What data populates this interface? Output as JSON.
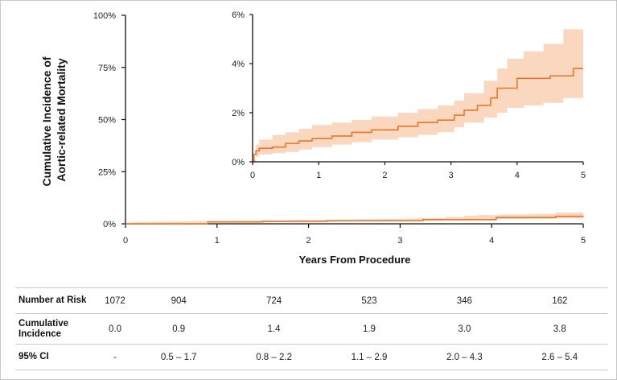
{
  "colors": {
    "line": "#e8762b",
    "band": "#fad7bf",
    "axis": "#111111",
    "grid": "#c9c9c9"
  },
  "chart_data": [
    {
      "id": "main",
      "type": "line",
      "title": "",
      "xlabel": "Years From Procedure",
      "ylabel": [
        "Cumulative Incidence of",
        "Aortic-related Mortality"
      ],
      "xlim": [
        0,
        5
      ],
      "ylim": [
        0,
        100
      ],
      "xticks": [
        0,
        1,
        2,
        3,
        4,
        5
      ],
      "yticks": [
        0,
        25,
        50,
        75,
        100
      ],
      "ytick_labels": [
        "0%",
        "25%",
        "50%",
        "75%",
        "100%"
      ],
      "grid": false,
      "series": [
        {
          "name": "Cumulative incidence",
          "x": [
            0,
            0.9,
            1.5,
            2.2,
            3.25,
            4.05,
            4.7,
            5
          ],
          "y": [
            0,
            0.9,
            1.2,
            1.5,
            2.0,
            3.0,
            3.6,
            3.8
          ]
        }
      ]
    },
    {
      "id": "inset",
      "type": "area",
      "xlim": [
        0,
        5
      ],
      "ylim": [
        0,
        6
      ],
      "xticks": [
        0,
        1,
        2,
        3,
        4,
        5
      ],
      "yticks": [
        0,
        2,
        4,
        6
      ],
      "ytick_labels": [
        "0%",
        "2%",
        "4%",
        "6%"
      ],
      "grid": false,
      "series": [
        {
          "name": "Cumulative incidence",
          "x": [
            0,
            0.02,
            0.05,
            0.1,
            0.3,
            0.5,
            0.7,
            0.9,
            1.2,
            1.5,
            1.8,
            2.2,
            2.5,
            2.8,
            3.05,
            3.2,
            3.4,
            3.6,
            3.7,
            4.0,
            4.5,
            4.85,
            5.0
          ],
          "y": [
            0,
            0.3,
            0.45,
            0.55,
            0.6,
            0.75,
            0.85,
            0.95,
            1.05,
            1.2,
            1.3,
            1.45,
            1.6,
            1.7,
            1.9,
            2.1,
            2.3,
            2.6,
            3.0,
            3.4,
            3.5,
            3.8,
            3.8
          ]
        }
      ],
      "band": {
        "name": "95% CI",
        "x": [
          0,
          0.05,
          0.1,
          0.3,
          0.5,
          0.7,
          0.9,
          1.2,
          1.5,
          1.8,
          2.2,
          2.5,
          2.8,
          3.05,
          3.2,
          3.5,
          3.7,
          3.85,
          4.1,
          4.4,
          4.7,
          5.0
        ],
        "lower": [
          0,
          0.1,
          0.2,
          0.3,
          0.35,
          0.4,
          0.5,
          0.6,
          0.7,
          0.8,
          0.9,
          1.0,
          1.1,
          1.2,
          1.4,
          1.6,
          1.8,
          2.0,
          2.2,
          2.3,
          2.4,
          2.6
        ],
        "upper": [
          0,
          0.7,
          0.9,
          1.1,
          1.2,
          1.35,
          1.5,
          1.6,
          1.7,
          1.85,
          2.0,
          2.15,
          2.3,
          2.5,
          2.8,
          3.3,
          3.8,
          4.2,
          4.5,
          4.8,
          5.4,
          5.4
        ]
      }
    }
  ],
  "risk_table": {
    "rows": [
      {
        "label": "Number at Risk",
        "values": [
          "1072",
          "904",
          "724",
          "523",
          "346",
          "162"
        ]
      },
      {
        "label": "Cumulative Incidence",
        "values": [
          "0.0",
          "0.9",
          "1.4",
          "1.9",
          "3.0",
          "3.8"
        ]
      },
      {
        "label": "95% CI",
        "values": [
          "-",
          "0.5 – 1.7",
          "0.8 – 2.2",
          "1.1 – 2.9",
          "2.0 – 4.3",
          "2.6 – 5.4"
        ]
      }
    ]
  }
}
